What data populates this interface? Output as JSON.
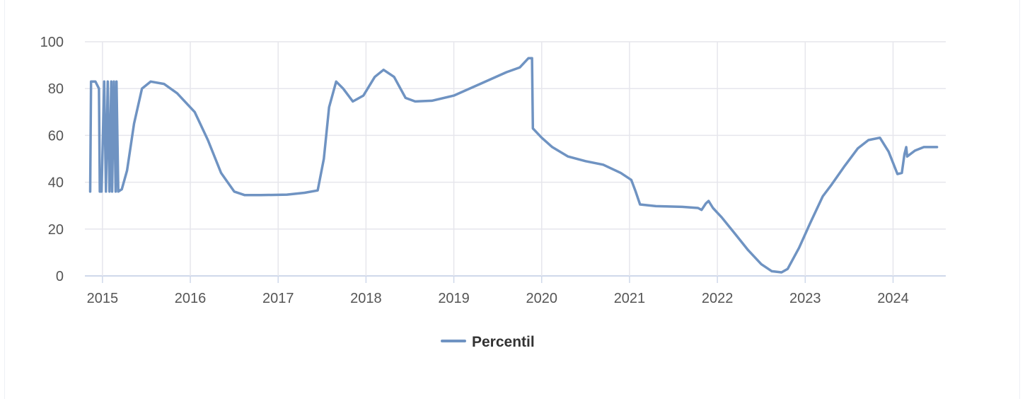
{
  "chart_data": {
    "type": "line",
    "title": "",
    "xlabel": "",
    "ylabel": "",
    "ylim": [
      0,
      100
    ],
    "xlim": [
      2014.8,
      2024.6
    ],
    "x_ticks": [
      "2015",
      "2016",
      "2017",
      "2018",
      "2019",
      "2020",
      "2021",
      "2022",
      "2023",
      "2024"
    ],
    "y_ticks": [
      "0",
      "20",
      "40",
      "60",
      "80",
      "100"
    ],
    "grid": true,
    "legend": "bottom-center",
    "series_color": "#6f93c2",
    "series": [
      {
        "name": "Percentil",
        "points": [
          [
            2014.86,
            36
          ],
          [
            2014.87,
            83
          ],
          [
            2014.92,
            83
          ],
          [
            2014.96,
            80
          ],
          [
            2014.97,
            36
          ],
          [
            2014.99,
            36
          ],
          [
            2015.02,
            83
          ],
          [
            2015.04,
            36
          ],
          [
            2015.06,
            83
          ],
          [
            2015.08,
            36
          ],
          [
            2015.1,
            83
          ],
          [
            2015.11,
            36
          ],
          [
            2015.13,
            83
          ],
          [
            2015.15,
            36
          ],
          [
            2015.16,
            83
          ],
          [
            2015.18,
            36
          ],
          [
            2015.22,
            37
          ],
          [
            2015.28,
            45
          ],
          [
            2015.36,
            65
          ],
          [
            2015.45,
            80
          ],
          [
            2015.55,
            83
          ],
          [
            2015.7,
            82
          ],
          [
            2015.85,
            78
          ],
          [
            2016.05,
            70
          ],
          [
            2016.2,
            58
          ],
          [
            2016.35,
            44
          ],
          [
            2016.5,
            36
          ],
          [
            2016.62,
            34.5
          ],
          [
            2016.8,
            34.5
          ],
          [
            2017.1,
            34.7
          ],
          [
            2017.3,
            35.5
          ],
          [
            2017.45,
            36.5
          ],
          [
            2017.52,
            50
          ],
          [
            2017.58,
            72
          ],
          [
            2017.66,
            83
          ],
          [
            2017.74,
            80
          ],
          [
            2017.85,
            74.5
          ],
          [
            2017.97,
            77
          ],
          [
            2018.1,
            85
          ],
          [
            2018.2,
            88
          ],
          [
            2018.32,
            85
          ],
          [
            2018.45,
            76
          ],
          [
            2018.56,
            74.5
          ],
          [
            2018.75,
            74.8
          ],
          [
            2019.0,
            77
          ],
          [
            2019.3,
            82
          ],
          [
            2019.6,
            87
          ],
          [
            2019.75,
            89
          ],
          [
            2019.85,
            93
          ],
          [
            2019.89,
            93
          ],
          [
            2019.9,
            63
          ],
          [
            2020.0,
            59
          ],
          [
            2020.12,
            55
          ],
          [
            2020.3,
            51
          ],
          [
            2020.5,
            49
          ],
          [
            2020.7,
            47.5
          ],
          [
            2020.9,
            44
          ],
          [
            2021.02,
            41
          ],
          [
            2021.07,
            36
          ],
          [
            2021.12,
            30.5
          ],
          [
            2021.3,
            29.8
          ],
          [
            2021.6,
            29.5
          ],
          [
            2021.78,
            29
          ],
          [
            2021.82,
            28.2
          ],
          [
            2021.87,
            31
          ],
          [
            2021.9,
            32
          ],
          [
            2021.95,
            29
          ],
          [
            2022.05,
            25
          ],
          [
            2022.2,
            18
          ],
          [
            2022.35,
            11
          ],
          [
            2022.5,
            5
          ],
          [
            2022.62,
            2
          ],
          [
            2022.73,
            1.5
          ],
          [
            2022.8,
            3
          ],
          [
            2022.93,
            12
          ],
          [
            2023.05,
            22
          ],
          [
            2023.2,
            34
          ],
          [
            2023.3,
            39
          ],
          [
            2023.45,
            47
          ],
          [
            2023.6,
            54.5
          ],
          [
            2023.72,
            58
          ],
          [
            2023.85,
            59
          ],
          [
            2023.95,
            53
          ],
          [
            2024.05,
            43.5
          ],
          [
            2024.1,
            44
          ],
          [
            2024.13,
            52
          ],
          [
            2024.15,
            55
          ],
          [
            2024.16,
            51
          ],
          [
            2024.25,
            53.5
          ],
          [
            2024.35,
            55
          ],
          [
            2024.5,
            55
          ]
        ]
      }
    ]
  }
}
